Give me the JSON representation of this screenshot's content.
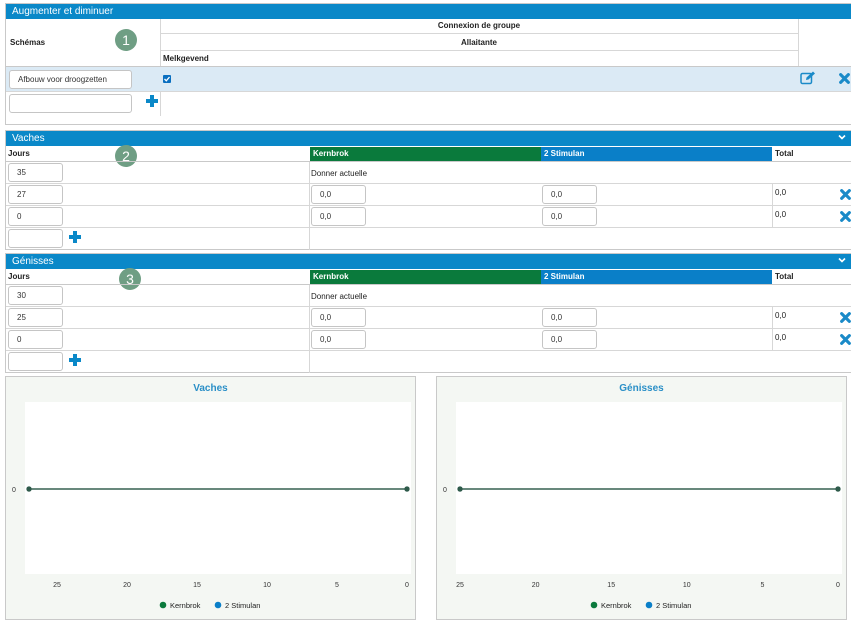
{
  "section1": {
    "title": "Augmenter et diminuer",
    "badge": "1",
    "col_schemas": "Schémas",
    "group_header": "Connexion de groupe",
    "sub_header": "Allaitante",
    "sub_sub_header": "Melkgevend",
    "row_value": "Afbouw voor droogzetten",
    "new_value": ""
  },
  "vaches": {
    "title": "Vaches",
    "badge": "2",
    "col_jours": "Jours",
    "col_kernbrok": "Kernbrok",
    "col_stimulan": "2 Stimulan",
    "col_total": "Total",
    "current_label": "Donner actuelle",
    "rows": [
      {
        "jours": "35"
      },
      {
        "jours": "27",
        "kernbrok": "0,0",
        "stimulan": "0,0",
        "total": "0,0"
      },
      {
        "jours": "0",
        "kernbrok": "0,0",
        "stimulan": "0,0",
        "total": "0,0"
      }
    ]
  },
  "genisses": {
    "title": "Génisses",
    "badge": "3",
    "col_jours": "Jours",
    "col_kernbrok": "Kernbrok",
    "col_stimulan": "2 Stimulan",
    "col_total": "Total",
    "current_label": "Donner actuelle",
    "rows": [
      {
        "jours": "30"
      },
      {
        "jours": "25",
        "kernbrok": "0,0",
        "stimulan": "0,0",
        "total": "0,0"
      },
      {
        "jours": "0",
        "kernbrok": "0,0",
        "stimulan": "0,0",
        "total": "0,0"
      }
    ]
  },
  "colors": {
    "header": "#0a88c8",
    "kernbrok": "#0a7a3c",
    "stimulan": "#0a7fc8",
    "badge": "#6f9e84",
    "series_line": "#2e5a4a"
  },
  "chart_data": [
    {
      "type": "line",
      "title": "Vaches",
      "x": [
        27,
        0
      ],
      "xticks": [
        "25",
        "20",
        "15",
        "10",
        "5",
        "0"
      ],
      "xlim": [
        27,
        0
      ],
      "yticks": [
        "0"
      ],
      "series": [
        {
          "name": "Kernbrok",
          "values": [
            0,
            0
          ],
          "color": "#0a7a3c"
        },
        {
          "name": "2 Stimulan",
          "values": [
            0,
            0
          ],
          "color": "#0a7fc8"
        }
      ],
      "legend": "bottom"
    },
    {
      "type": "line",
      "title": "Génisses",
      "x": [
        25,
        0
      ],
      "xticks": [
        "25",
        "20",
        "15",
        "10",
        "5",
        "0"
      ],
      "xlim": [
        25,
        0
      ],
      "yticks": [
        "0"
      ],
      "series": [
        {
          "name": "Kernbrok",
          "values": [
            0,
            0
          ],
          "color": "#0a7a3c"
        },
        {
          "name": "2 Stimulan",
          "values": [
            0,
            0
          ],
          "color": "#0a7fc8"
        }
      ],
      "legend": "bottom"
    }
  ]
}
